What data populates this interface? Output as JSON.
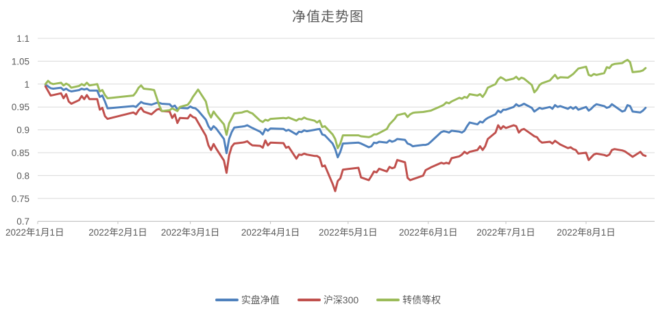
{
  "chart_data": {
    "type": "line",
    "title": "净值走势图",
    "x_axis": {
      "tick_labels": [
        "2022年1月1日",
        "2022年2月1日",
        "2022年3月1日",
        "2022年4月1日",
        "2022年5月1日",
        "2022年6月1日",
        "2022年7月1日",
        "2022年8月1日"
      ],
      "tick_day_of_year": [
        0,
        31,
        59,
        90,
        120,
        151,
        181,
        212
      ],
      "domain_days": [
        0,
        237
      ]
    },
    "y_axis": {
      "min": 0.7,
      "max": 1.1,
      "step": 0.05,
      "tick_labels": [
        "0.7",
        "0.75",
        "0.8",
        "0.85",
        "0.9",
        "0.95",
        "1",
        "1.05",
        "1.1"
      ]
    },
    "grid": "horizontal",
    "legend_position": "bottom",
    "style": {
      "grid_color": "#d9d9d9",
      "axis_color": "#bfbfbf",
      "text_color": "#595959",
      "background": "#ffffff"
    },
    "dates": [
      "1-4",
      "1-5",
      "1-6",
      "1-7",
      "1-10",
      "1-11",
      "1-12",
      "1-13",
      "1-14",
      "1-17",
      "1-18",
      "1-19",
      "1-20",
      "1-21",
      "1-24",
      "1-25",
      "1-26",
      "1-27",
      "1-28",
      "2-7",
      "2-8",
      "2-9",
      "2-10",
      "2-11",
      "2-14",
      "2-15",
      "2-16",
      "2-17",
      "2-18",
      "2-21",
      "2-22",
      "2-23",
      "2-24",
      "2-25",
      "2-28",
      "3-1",
      "3-2",
      "3-3",
      "3-4",
      "3-7",
      "3-8",
      "3-9",
      "3-10",
      "3-11",
      "3-14",
      "3-15",
      "3-16",
      "3-17",
      "3-18",
      "3-21",
      "3-22",
      "3-23",
      "3-24",
      "3-25",
      "3-28",
      "3-29",
      "3-30",
      "3-31",
      "4-1",
      "4-6",
      "4-7",
      "4-8",
      "4-11",
      "4-12",
      "4-13",
      "4-14",
      "4-15",
      "4-18",
      "4-19",
      "4-20",
      "4-21",
      "4-22",
      "4-25",
      "4-26",
      "4-27",
      "4-28",
      "4-29",
      "5-5",
      "5-6",
      "5-9",
      "5-10",
      "5-11",
      "5-12",
      "5-13",
      "5-16",
      "5-17",
      "5-18",
      "5-19",
      "5-20",
      "5-23",
      "5-24",
      "5-25",
      "5-26",
      "5-27",
      "5-30",
      "5-31",
      "6-1",
      "6-2",
      "6-6",
      "6-7",
      "6-8",
      "6-9",
      "6-10",
      "6-13",
      "6-14",
      "6-15",
      "6-16",
      "6-17",
      "6-20",
      "6-21",
      "6-22",
      "6-23",
      "6-24",
      "6-27",
      "6-28",
      "6-29",
      "6-30",
      "7-1",
      "7-4",
      "7-5",
      "7-6",
      "7-7",
      "7-8",
      "7-11",
      "7-12",
      "7-13",
      "7-14",
      "7-15",
      "7-18",
      "7-19",
      "7-20",
      "7-21",
      "7-22",
      "7-25",
      "7-26",
      "7-27",
      "7-28",
      "7-29",
      "8-1",
      "8-2",
      "8-3",
      "8-4",
      "8-5",
      "8-8",
      "8-9",
      "8-10",
      "8-11",
      "8-12",
      "8-15",
      "8-16",
      "8-17",
      "8-18",
      "8-19",
      "8-22",
      "8-23",
      "8-24"
    ],
    "series": [
      {
        "name": "实盘净值",
        "color": "#4f81bd",
        "values": [
          0.999,
          0.995,
          0.991,
          0.99,
          0.992,
          0.987,
          0.99,
          0.986,
          0.984,
          0.987,
          0.99,
          0.988,
          0.99,
          0.986,
          0.986,
          0.972,
          0.975,
          0.962,
          0.947,
          0.952,
          0.95,
          0.956,
          0.961,
          0.958,
          0.955,
          0.957,
          0.959,
          0.959,
          0.957,
          0.956,
          0.95,
          0.953,
          0.945,
          0.948,
          0.947,
          0.951,
          0.948,
          0.947,
          0.942,
          0.922,
          0.908,
          0.9,
          0.908,
          0.903,
          0.88,
          0.849,
          0.88,
          0.895,
          0.905,
          0.907,
          0.908,
          0.91,
          0.907,
          0.904,
          0.896,
          0.89,
          0.902,
          0.898,
          0.903,
          0.902,
          0.898,
          0.9,
          0.89,
          0.896,
          0.895,
          0.899,
          0.897,
          0.9,
          0.901,
          0.902,
          0.89,
          0.888,
          0.87,
          0.858,
          0.84,
          0.852,
          0.87,
          0.872,
          0.87,
          0.862,
          0.864,
          0.872,
          0.871,
          0.874,
          0.872,
          0.877,
          0.874,
          0.876,
          0.88,
          0.878,
          0.87,
          0.868,
          0.864,
          0.865,
          0.867,
          0.867,
          0.869,
          0.874,
          0.895,
          0.897,
          0.896,
          0.894,
          0.898,
          0.896,
          0.894,
          0.898,
          0.908,
          0.916,
          0.912,
          0.918,
          0.916,
          0.922,
          0.926,
          0.934,
          0.942,
          0.938,
          0.944,
          0.944,
          0.95,
          0.956,
          0.952,
          0.954,
          0.957,
          0.948,
          0.94,
          0.944,
          0.948,
          0.946,
          0.95,
          0.946,
          0.954,
          0.95,
          0.952,
          0.946,
          0.95,
          0.946,
          0.95,
          0.944,
          0.95,
          0.942,
          0.946,
          0.952,
          0.956,
          0.952,
          0.948,
          0.95,
          0.956,
          0.952,
          0.94,
          0.942,
          0.954,
          0.952,
          0.94,
          0.938,
          0.942,
          0.948
        ]
      },
      {
        "name": "沪深300",
        "color": "#c0504d",
        "values": [
          0.995,
          0.985,
          0.975,
          0.976,
          0.98,
          0.969,
          0.978,
          0.962,
          0.957,
          0.965,
          0.974,
          0.967,
          0.976,
          0.967,
          0.967,
          0.944,
          0.948,
          0.93,
          0.924,
          0.938,
          0.934,
          0.943,
          0.948,
          0.94,
          0.934,
          0.939,
          0.944,
          0.946,
          0.941,
          0.94,
          0.926,
          0.934,
          0.915,
          0.926,
          0.925,
          0.933,
          0.928,
          0.926,
          0.916,
          0.887,
          0.866,
          0.856,
          0.869,
          0.859,
          0.833,
          0.806,
          0.844,
          0.863,
          0.87,
          0.872,
          0.873,
          0.875,
          0.87,
          0.866,
          0.865,
          0.861,
          0.877,
          0.866,
          0.872,
          0.871,
          0.861,
          0.863,
          0.837,
          0.846,
          0.845,
          0.848,
          0.846,
          0.843,
          0.843,
          0.839,
          0.82,
          0.822,
          0.782,
          0.766,
          0.788,
          0.794,
          0.813,
          0.817,
          0.796,
          0.79,
          0.799,
          0.809,
          0.807,
          0.815,
          0.809,
          0.819,
          0.816,
          0.818,
          0.834,
          0.829,
          0.795,
          0.79,
          0.792,
          0.794,
          0.8,
          0.812,
          0.815,
          0.818,
          0.828,
          0.826,
          0.828,
          0.826,
          0.838,
          0.842,
          0.846,
          0.852,
          0.848,
          0.852,
          0.856,
          0.864,
          0.856,
          0.864,
          0.88,
          0.894,
          0.91,
          0.902,
          0.908,
          0.904,
          0.91,
          0.908,
          0.894,
          0.9,
          0.902,
          0.89,
          0.886,
          0.884,
          0.876,
          0.872,
          0.874,
          0.87,
          0.876,
          0.872,
          0.868,
          0.86,
          0.862,
          0.858,
          0.856,
          0.848,
          0.85,
          0.834,
          0.84,
          0.846,
          0.848,
          0.845,
          0.843,
          0.846,
          0.856,
          0.858,
          0.855,
          0.853,
          0.849,
          0.845,
          0.841,
          0.852,
          0.845,
          0.843
        ]
      },
      {
        "name": "转债等权",
        "color": "#9bbb59",
        "values": [
          1.0,
          1.007,
          1.002,
          1.0,
          1.003,
          0.997,
          1.001,
          0.998,
          0.992,
          0.996,
          1.0,
          0.997,
          1.003,
          0.997,
          1.0,
          0.984,
          0.987,
          0.976,
          0.969,
          0.975,
          0.982,
          0.992,
          0.997,
          0.99,
          0.988,
          0.987,
          0.97,
          0.953,
          0.941,
          0.943,
          0.947,
          0.944,
          0.941,
          0.95,
          0.955,
          0.962,
          0.972,
          0.98,
          0.988,
          0.962,
          0.938,
          0.927,
          0.94,
          0.932,
          0.912,
          0.889,
          0.914,
          0.925,
          0.936,
          0.938,
          0.94,
          0.941,
          0.938,
          0.936,
          0.92,
          0.917,
          0.922,
          0.92,
          0.924,
          0.926,
          0.925,
          0.927,
          0.92,
          0.924,
          0.923,
          0.927,
          0.924,
          0.92,
          0.916,
          0.92,
          0.906,
          0.908,
          0.89,
          0.88,
          0.86,
          0.87,
          0.888,
          0.888,
          0.886,
          0.884,
          0.886,
          0.89,
          0.89,
          0.893,
          0.902,
          0.912,
          0.918,
          0.924,
          0.932,
          0.936,
          0.928,
          0.934,
          0.937,
          0.938,
          0.939,
          0.94,
          0.941,
          0.942,
          0.952,
          0.955,
          0.96,
          0.958,
          0.962,
          0.97,
          0.968,
          0.972,
          0.97,
          0.978,
          0.975,
          0.978,
          0.972,
          0.98,
          0.992,
          1.0,
          1.01,
          1.015,
          1.012,
          1.008,
          1.012,
          1.016,
          1.01,
          1.014,
          1.012,
          0.998,
          0.982,
          0.988,
          0.998,
          1.002,
          1.008,
          1.014,
          1.02,
          1.012,
          1.015,
          1.014,
          1.018,
          1.022,
          1.028,
          1.034,
          1.038,
          1.02,
          1.018,
          1.022,
          1.02,
          1.024,
          1.037,
          1.035,
          1.042,
          1.044,
          1.046,
          1.05,
          1.053,
          1.048,
          1.026,
          1.028,
          1.03,
          1.035
        ]
      }
    ]
  }
}
